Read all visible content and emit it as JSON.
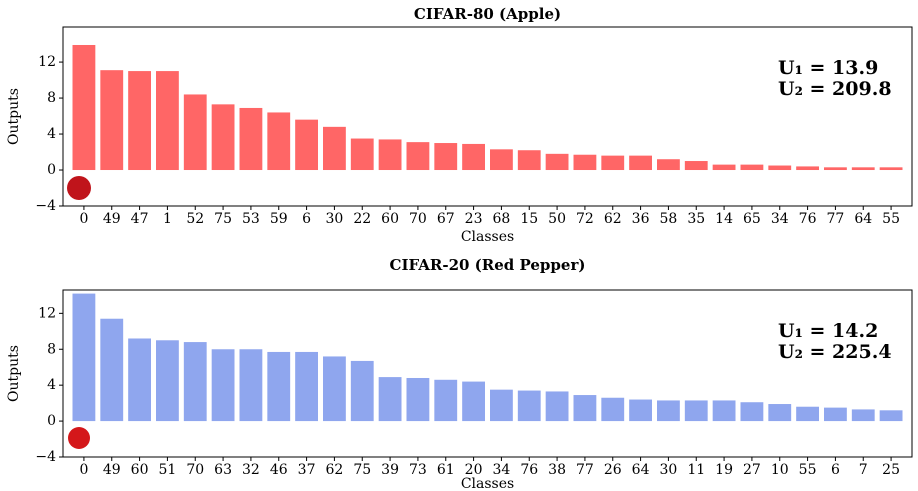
{
  "chart_data": [
    {
      "type": "bar",
      "title": "CIFAR-80 (Apple)",
      "x_label": "Classes",
      "y_label": "Outputs",
      "categories": [
        "0",
        "49",
        "47",
        "1",
        "52",
        "75",
        "53",
        "59",
        "6",
        "30",
        "22",
        "60",
        "70",
        "67",
        "23",
        "68",
        "15",
        "50",
        "72",
        "62",
        "36",
        "58",
        "35",
        "14",
        "65",
        "34",
        "76",
        "77",
        "64",
        "55"
      ],
      "values": [
        13.9,
        11.1,
        11.0,
        11.0,
        8.4,
        7.3,
        6.9,
        6.4,
        5.6,
        4.8,
        3.5,
        3.4,
        3.1,
        3.0,
        2.9,
        2.3,
        2.2,
        1.8,
        1.7,
        1.6,
        1.6,
        1.2,
        1.0,
        0.6,
        0.6,
        0.5,
        0.4,
        0.3,
        0.3,
        0.3
      ],
      "color": "#ff6666",
      "ylim": [
        -4,
        15.9
      ],
      "yticks": [
        {
          "value": -4,
          "label": "−4"
        },
        0,
        4,
        8,
        12
      ],
      "annotations": [
        "U₁ = 13.9",
        "U₂ = 209.8"
      ]
    },
    {
      "type": "bar",
      "title": "CIFAR-20 (Red Pepper)",
      "x_label": "Classes",
      "y_label": "Outputs",
      "categories": [
        "0",
        "49",
        "60",
        "51",
        "70",
        "63",
        "32",
        "46",
        "37",
        "62",
        "75",
        "39",
        "73",
        "61",
        "20",
        "34",
        "76",
        "38",
        "77",
        "26",
        "64",
        "30",
        "11",
        "19",
        "27",
        "10",
        "55",
        "6",
        "7",
        "25"
      ],
      "values": [
        14.2,
        11.4,
        9.2,
        9.0,
        8.8,
        8.0,
        8.0,
        7.7,
        7.7,
        7.2,
        6.7,
        4.9,
        4.8,
        4.6,
        4.4,
        3.5,
        3.4,
        3.3,
        2.9,
        2.6,
        2.4,
        2.3,
        2.3,
        2.3,
        2.1,
        1.9,
        1.6,
        1.5,
        1.3,
        1.2
      ],
      "color": "#8fa6ee",
      "ylim": [
        -4,
        14.6
      ],
      "yticks": [
        {
          "value": -4,
          "label": "−4"
        },
        0,
        4,
        8,
        12
      ],
      "annotations": [
        "U₁ = 14.2",
        "U₂ = 225.4"
      ]
    }
  ]
}
